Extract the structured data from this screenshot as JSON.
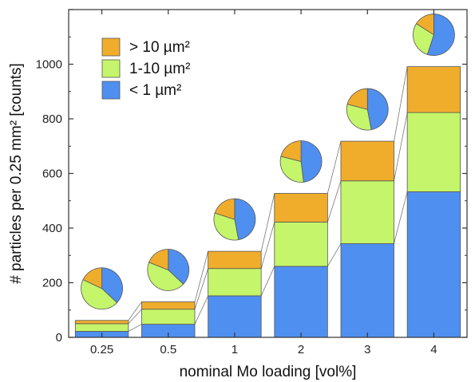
{
  "chart_data": {
    "type": "bar",
    "stacked": true,
    "categories": [
      "0.25",
      "0.5",
      "1",
      "2",
      "3",
      "4"
    ],
    "series": [
      {
        "name": "< 1 µm²",
        "color": "#4f8ff0",
        "values": [
          22,
          48,
          152,
          260,
          343,
          533
        ]
      },
      {
        "name": "1-10 µm²",
        "color": "#c4f56a",
        "values": [
          28,
          55,
          100,
          162,
          230,
          290
        ]
      },
      {
        "name": "> 10 µm²",
        "color": "#f0ad2c",
        "values": [
          12,
          27,
          63,
          105,
          145,
          168
        ]
      }
    ],
    "pies": [
      {
        "category": "0.25",
        "fractions": [
          0.37,
          0.45,
          0.18
        ]
      },
      {
        "category": "0.5",
        "fractions": [
          0.37,
          0.44,
          0.19
        ]
      },
      {
        "category": "1",
        "fractions": [
          0.47,
          0.33,
          0.2
        ]
      },
      {
        "category": "2",
        "fractions": [
          0.48,
          0.31,
          0.21
        ]
      },
      {
        "category": "3",
        "fractions": [
          0.47,
          0.32,
          0.21
        ]
      },
      {
        "category": "4",
        "fractions": [
          0.55,
          0.29,
          0.16
        ]
      }
    ],
    "xlabel": "nominal Mo loading [vol%]",
    "ylabel": "# particles per 0.25 mm² [counts]",
    "ylim": [
      0,
      1200
    ],
    "yticks": [
      0,
      200,
      400,
      600,
      800,
      1000
    ],
    "legend_position": "top-left",
    "legend_order": [
      2,
      1,
      0
    ],
    "grid": false
  }
}
